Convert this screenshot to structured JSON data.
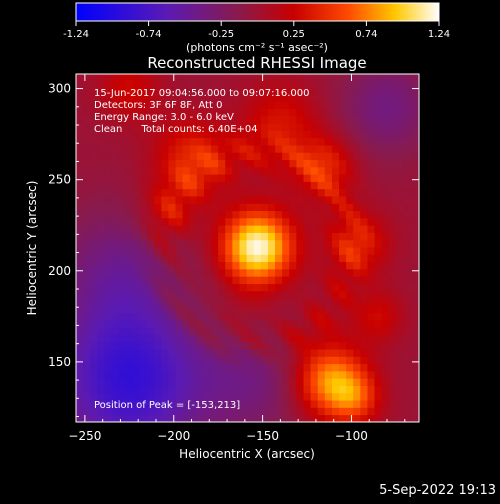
{
  "colorbar": {
    "ticks": [
      "-1.24",
      "-0.74",
      "-0.25",
      "0.25",
      "0.74",
      "1.24"
    ],
    "units": "(photons cm⁻² s⁻¹ asec⁻²)"
  },
  "title": "Reconstructed RHESSI Image",
  "info": {
    "line1": "15-Jun-2017 09:04:56.000 to 09:07:16.000",
    "line2": "Detectors: 3F 6F 8F, Att 0",
    "line3": "Energy Range: 3.0 - 6.0 keV",
    "line4": "Clean      Total counts: 6.40E+04"
  },
  "peak_label": "Position of Peak = [-153,213]",
  "footer": "5-Sep-2022 19:13",
  "chart_data": {
    "type": "heatmap",
    "title": "Reconstructed RHESSI Image",
    "xlabel": "Heliocentric X (arcsec)",
    "ylabel": "Heliocentric Y (arcsec)",
    "xlim": [
      -255,
      -62
    ],
    "ylim": [
      117,
      308
    ],
    "xticks": [
      -250,
      -200,
      -150,
      -100
    ],
    "yticks": [
      150,
      200,
      250,
      300
    ],
    "colorbar_range": [
      -1.24,
      1.24
    ],
    "peak": [
      -153,
      213
    ],
    "sources": [
      {
        "x": -153,
        "y": 213,
        "sigma": 14,
        "amp": 1.24
      },
      {
        "x": -112,
        "y": 140,
        "sigma": 14,
        "amp": 0.85
      },
      {
        "x": -98,
        "y": 130,
        "sigma": 10,
        "amp": 0.45
      },
      {
        "x": -190,
        "y": 262,
        "sigma": 15,
        "amp": 0.45
      },
      {
        "x": -140,
        "y": 282,
        "sigma": 15,
        "amp": 0.35
      },
      {
        "x": -115,
        "y": 258,
        "sigma": 12,
        "amp": 0.42
      },
      {
        "x": -95,
        "y": 215,
        "sigma": 12,
        "amp": 0.38
      },
      {
        "x": -205,
        "y": 232,
        "sigma": 12,
        "amp": 0.25
      },
      {
        "x": -225,
        "y": 300,
        "sigma": 12,
        "amp": 0.3
      },
      {
        "x": -85,
        "y": 175,
        "sigma": 10,
        "amp": 0.3
      },
      {
        "x": -160,
        "y": 180,
        "sigma": 10,
        "amp": 0.1
      }
    ],
    "background": [
      {
        "x": -225,
        "y": 140,
        "sigma": 30,
        "amp": -0.85
      },
      {
        "x": -230,
        "y": 200,
        "sigma": 25,
        "amp": -0.35
      },
      {
        "x": -155,
        "y": 140,
        "sigma": 22,
        "amp": -0.3
      },
      {
        "x": -80,
        "y": 290,
        "sigma": 18,
        "amp": -0.35
      }
    ]
  }
}
